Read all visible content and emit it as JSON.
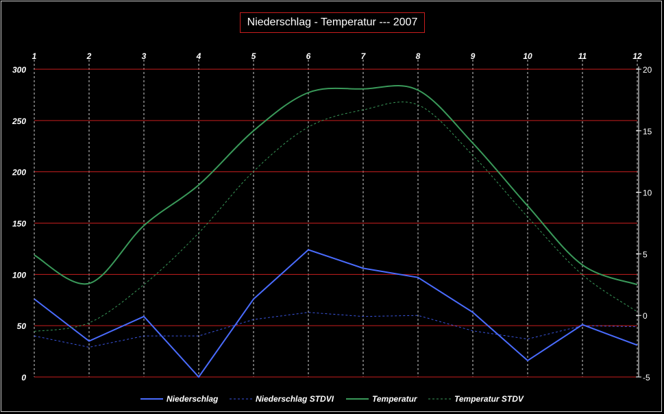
{
  "chart_data": {
    "type": "line",
    "title": "Niederschlag - Temperatur --- 2007",
    "x": [
      1,
      2,
      3,
      4,
      5,
      6,
      7,
      8,
      9,
      10,
      11,
      12
    ],
    "x_tick_labels": [
      "1",
      "2",
      "3",
      "4",
      "5",
      "6",
      "7",
      "8",
      "9",
      "10",
      "11",
      "12"
    ],
    "y_left": {
      "ylim": [
        0,
        300
      ],
      "ticks": [
        "0",
        "50",
        "100",
        "150",
        "200",
        "250",
        "300"
      ]
    },
    "y_right": {
      "ylim": [
        -5,
        20
      ],
      "ticks": [
        "-5",
        "0",
        "5",
        "10",
        "15",
        "20"
      ]
    },
    "series": [
      {
        "name": "Niederschlag",
        "axis": "left",
        "style": "solid",
        "color": "#4a6cff",
        "values": [
          76,
          35,
          59,
          0,
          76,
          124,
          106,
          97,
          63,
          16,
          51,
          31
        ]
      },
      {
        "name": "Niederschlag STDVI",
        "axis": "left",
        "style": "dashed",
        "color": "#3a55e0",
        "values": [
          40,
          29,
          40,
          40,
          56,
          63,
          59,
          60,
          45,
          37,
          50,
          49
        ]
      },
      {
        "name": "Temperatur",
        "axis": "right",
        "style": "solid",
        "color": "#3a9a5a",
        "smooth": true,
        "values": [
          4.9,
          2.6,
          7.3,
          10.6,
          15.0,
          18.1,
          18.4,
          18.3,
          14.0,
          8.9,
          4.1,
          2.5
        ]
      },
      {
        "name": "Temperatur STDV",
        "axis": "right",
        "style": "dashed",
        "color": "#3a9a5a",
        "smooth": true,
        "values": [
          -1.3,
          -0.6,
          2.5,
          6.7,
          11.7,
          15.3,
          16.7,
          17.1,
          13.0,
          8.0,
          3.3,
          0.3
        ]
      }
    ],
    "grid": {
      "horizontal": true,
      "horizontal_color": "#c81e1e",
      "vertical": true,
      "vertical_style": "dashed"
    },
    "legend_position": "bottom"
  }
}
